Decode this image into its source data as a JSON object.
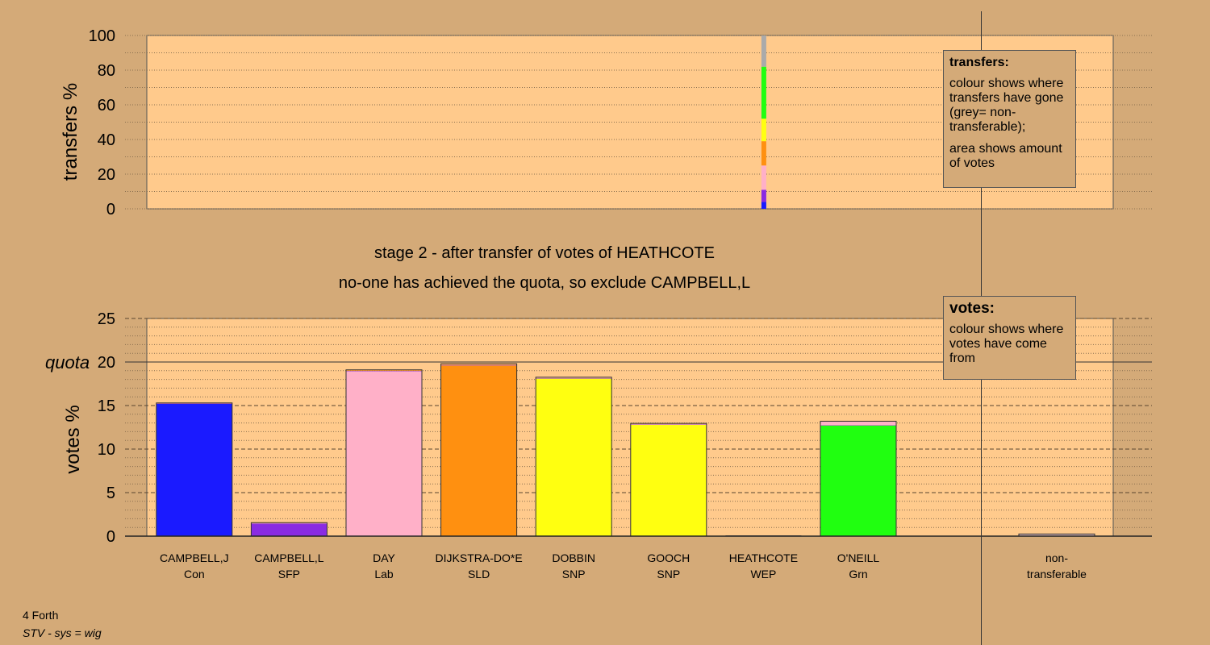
{
  "chart_data": [
    {
      "type": "bar",
      "id": "transfers",
      "ylabel": "transfers %",
      "ylim": [
        0,
        100
      ],
      "yticks": [
        0,
        20,
        40,
        60,
        80,
        100
      ],
      "stack_x_category": "HEATHCOTE",
      "stack": [
        {
          "color": "#1a1aff",
          "from": 0,
          "to": 4
        },
        {
          "color": "#8a2be2",
          "from": 4,
          "to": 11
        },
        {
          "color": "#ffb0c8",
          "from": 11,
          "to": 25
        },
        {
          "color": "#ff9010",
          "from": 25,
          "to": 39
        },
        {
          "color": "#ffff10",
          "from": 39,
          "to": 52
        },
        {
          "color": "#20ff10",
          "from": 52,
          "to": 82
        },
        {
          "color": "#aaaaaa",
          "from": 82,
          "to": 100
        }
      ],
      "legend": {
        "title": "transfers:",
        "lines": [
          "colour shows where transfers have gone (grey= non-transferable);",
          "area shows amount of votes"
        ]
      }
    },
    {
      "type": "bar",
      "id": "votes",
      "ylabel": "votes %",
      "ylim": [
        0,
        25
      ],
      "yticks": [
        0,
        5,
        10,
        15,
        20,
        25
      ],
      "quota": 20,
      "quota_label": "quota",
      "categories": [
        {
          "name": "CAMPBELL,J",
          "party": "Con"
        },
        {
          "name": "CAMPBELL,L",
          "party": "SFP"
        },
        {
          "name": "DAY",
          "party": "Lab"
        },
        {
          "name": "DIJKSTRA-DO*E",
          "party": "SLD"
        },
        {
          "name": "DOBBIN",
          "party": "SNP"
        },
        {
          "name": "GOOCH",
          "party": "SNP"
        },
        {
          "name": "HEATHCOTE",
          "party": "WEP"
        },
        {
          "name": "O'NEILL",
          "party": "Grn"
        }
      ],
      "series": [
        {
          "color": "#1a1aff",
          "values": [
            15.2,
            0,
            0,
            0,
            0,
            0,
            0,
            0
          ],
          "nontransferable": 0
        },
        {
          "color": "#8a2be2",
          "values": [
            0,
            1.3,
            0,
            0,
            0,
            0,
            0,
            0
          ],
          "nontransferable": 0
        },
        {
          "color": "#ffb0c8",
          "values": [
            0,
            0,
            18.9,
            0,
            0,
            0,
            0,
            0
          ],
          "nontransferable": 0
        },
        {
          "color": "#ff9010",
          "values": [
            0,
            0,
            0,
            19.6,
            0,
            0,
            0,
            0
          ],
          "nontransferable": 0
        },
        {
          "color": "#ffff10",
          "values": [
            0,
            0,
            0,
            0,
            18.1,
            12.8,
            0,
            0
          ],
          "nontransferable": 0
        },
        {
          "color": "#20ff10",
          "values": [
            0,
            0,
            0,
            0,
            0,
            0,
            0,
            12.7
          ],
          "nontransferable": 0
        },
        {
          "color": "#8a2be2",
          "values": [
            0.05,
            0.15,
            0.05,
            0.05,
            0.05,
            0.05,
            0,
            0.05
          ],
          "nontransferable": 0
        },
        {
          "color": "#ffb0c8",
          "values": [
            0,
            0.05,
            0.05,
            0.05,
            0.05,
            0.05,
            0,
            0.4
          ],
          "nontransferable": 0
        },
        {
          "color": "#ff9010",
          "values": [
            0.05,
            0.05,
            0.1,
            0.1,
            0.05,
            0.05,
            0,
            0.05
          ],
          "nontransferable": 0
        },
        {
          "color": "#aaaaaa",
          "values": [
            0,
            0,
            0,
            0,
            0,
            0,
            0,
            0
          ],
          "nontransferable": 0.25
        }
      ],
      "nontransferable_label": [
        "non-",
        "transferable"
      ],
      "legend": {
        "title": "votes:",
        "lines": [
          "colour shows where votes have come from"
        ]
      }
    }
  ],
  "stage_title": "stage 2 - after transfer of votes of HEATHCOTE",
  "stage_note": "no-one has achieved the quota, so exclude CAMPBELL,L",
  "footer": {
    "constituency": "4 Forth",
    "system": "STV - sys = wig"
  }
}
